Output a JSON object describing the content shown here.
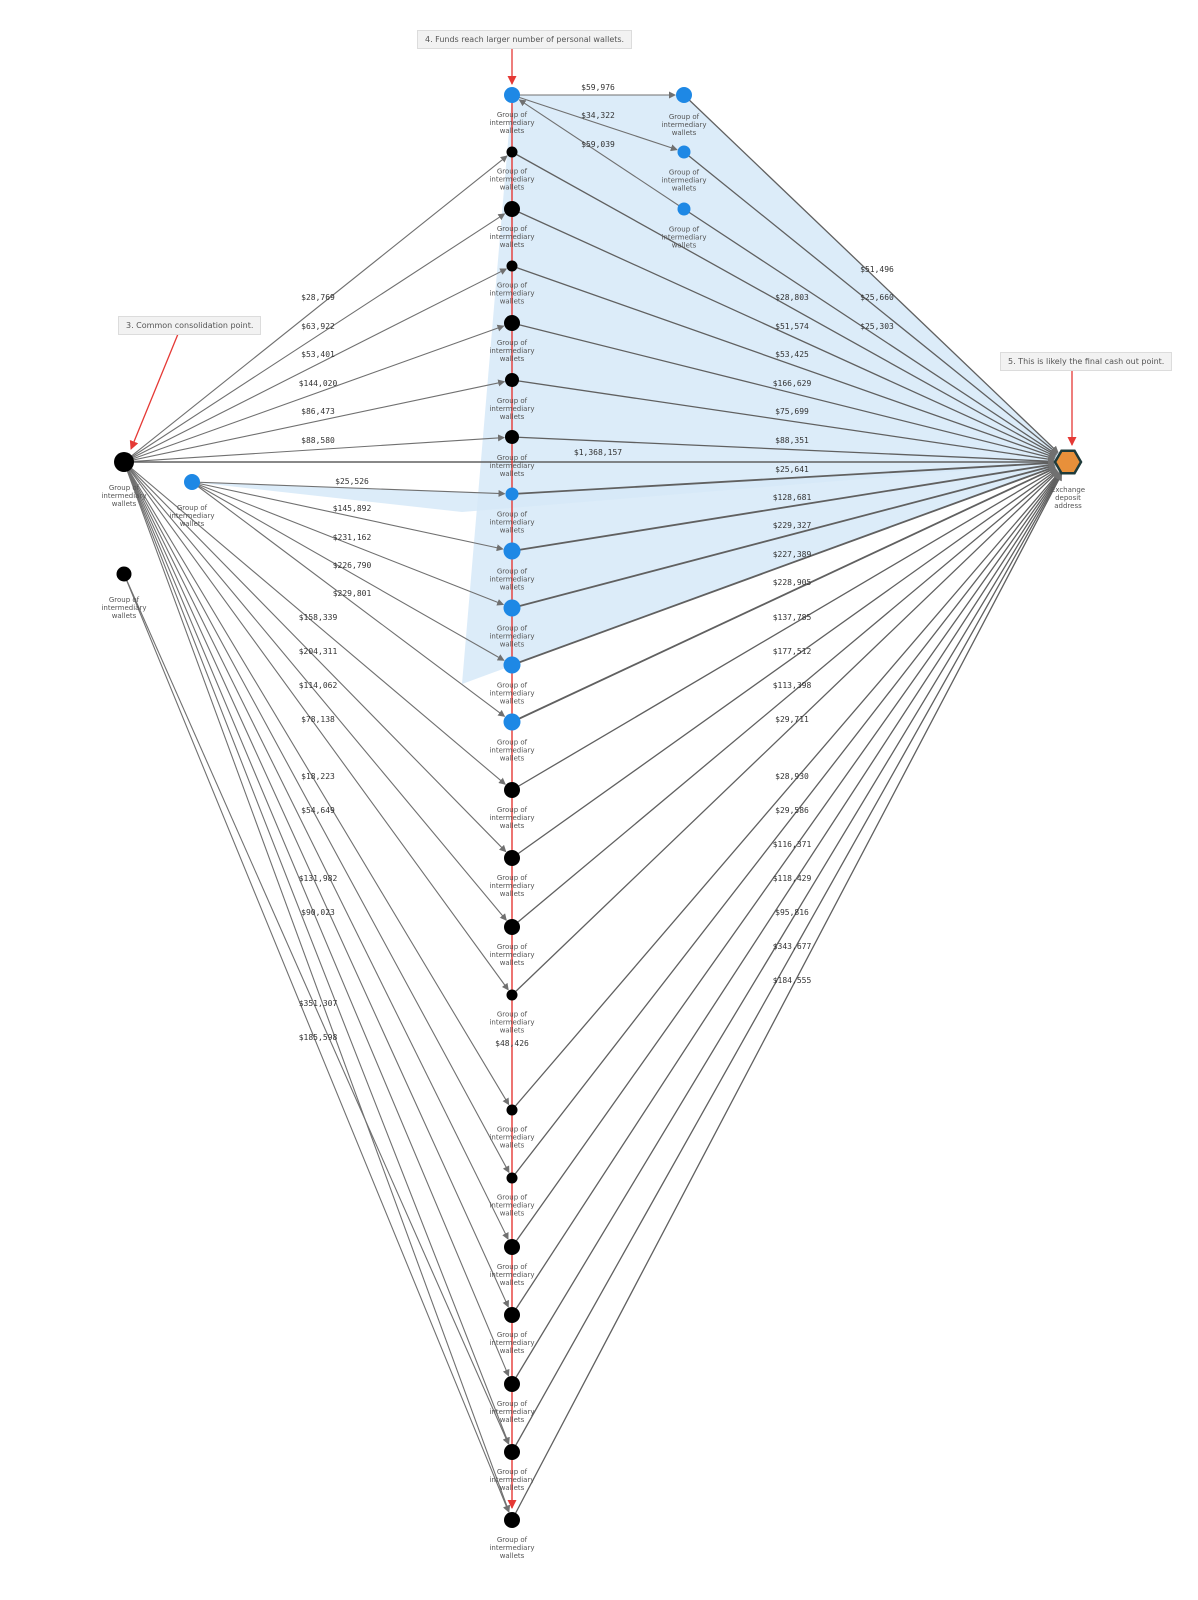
{
  "annotations": {
    "note3": "3. Common consolidation point.",
    "note4": "4. Funds reach larger number of personal wallets.",
    "note5": "5. This is likely the final cash out point."
  },
  "node_label": "Group of intermediary wallets",
  "exchange_label": "Exchange deposit address",
  "colors": {
    "blue": "#1e88e5",
    "black": "#000000",
    "exchange": "#e8903a",
    "edge": "#707070",
    "red": "#e53935",
    "highlight": "#d6e9f8"
  },
  "upper_left_amounts": [
    "$28,769",
    "$63,922",
    "$53,401",
    "$144,020",
    "$86,473",
    "$88,580"
  ],
  "upper_right_amounts": [
    "$28,803",
    "$51,574",
    "$53,425",
    "$166,629",
    "$75,699",
    "$88,351"
  ],
  "direct_amount": "$1,368,157",
  "top_cluster_amounts": [
    "$59,976",
    "$34,322",
    "$59,039"
  ],
  "top_cluster_right_amounts": [
    "$51,496",
    "$25,660",
    "$25,303"
  ],
  "blue_left_amounts": [
    "$25,526",
    "$145,892",
    "$231,162",
    "$226,790",
    "$229,801"
  ],
  "blue_right_amounts": [
    "$25,641",
    "$128,681",
    "$229,327",
    "$227,389",
    "$228,905"
  ],
  "lower_left_amounts": [
    "$158,339",
    "$204,311",
    "$114,062",
    "$78,138",
    "$18,223",
    "$54,649",
    "$131,982",
    "$90,023",
    "$351,307",
    "$185,598"
  ],
  "lower_right_amounts": [
    "$137,785",
    "$177,512",
    "$113,398",
    "$29,711",
    "$28,930",
    "$29,586",
    "$116,371",
    "$118,429",
    "$95,816",
    "$343,677",
    "$184,555"
  ],
  "middle_amount": "$48,426"
}
